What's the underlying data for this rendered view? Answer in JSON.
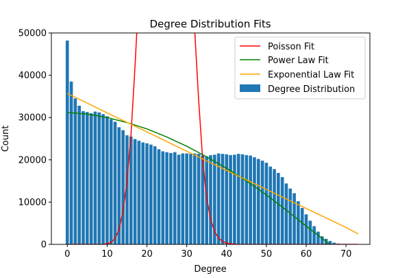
{
  "chart_data": {
    "type": "bar",
    "title": "Degree Distribution Fits",
    "xlabel": "Degree",
    "ylabel": "Count",
    "xlim": [
      -4,
      76
    ],
    "ylim": [
      0,
      50000
    ],
    "xticks": [
      0,
      10,
      20,
      30,
      40,
      50,
      60,
      70
    ],
    "yticks": [
      0,
      10000,
      20000,
      30000,
      40000,
      50000
    ],
    "grid": false,
    "legend_position": "top-right",
    "bar_series": {
      "name": "Degree Distribution",
      "color": "#1f77b4",
      "x": [
        0,
        1,
        2,
        3,
        4,
        5,
        6,
        7,
        8,
        9,
        10,
        11,
        12,
        13,
        14,
        15,
        16,
        17,
        18,
        19,
        20,
        21,
        22,
        23,
        24,
        25,
        26,
        27,
        28,
        29,
        30,
        31,
        32,
        33,
        34,
        35,
        36,
        37,
        38,
        39,
        40,
        41,
        42,
        43,
        44,
        45,
        46,
        47,
        48,
        49,
        50,
        51,
        52,
        53,
        54,
        55,
        56,
        57,
        58,
        59,
        60,
        61,
        62,
        63,
        64,
        65,
        66,
        67,
        68,
        69,
        70,
        71,
        72,
        73
      ],
      "values": [
        48200,
        38500,
        34500,
        32800,
        31500,
        31300,
        31000,
        31400,
        31200,
        30800,
        30300,
        29600,
        29000,
        27700,
        27000,
        25800,
        25500,
        24900,
        24500,
        24100,
        23900,
        23600,
        23200,
        22500,
        22000,
        21800,
        21600,
        21800,
        21200,
        21500,
        21500,
        21400,
        21500,
        21400,
        21000,
        20800,
        21100,
        21200,
        21500,
        21400,
        21300,
        21100,
        21200,
        21400,
        21300,
        21100,
        21000,
        20600,
        20200,
        19800,
        19300,
        18400,
        17800,
        16900,
        15900,
        14400,
        13200,
        12100,
        10200,
        8600,
        7100,
        5600,
        4300,
        3000,
        1900,
        1300,
        800,
        400,
        200,
        100,
        50,
        20,
        10,
        0
      ]
    },
    "line_series": [
      {
        "name": "Poisson Fit",
        "color": "#ff0000",
        "x": [
          0,
          1,
          2,
          3,
          4,
          5,
          6,
          7,
          8,
          9,
          10,
          11,
          12,
          13,
          14,
          15,
          16,
          17,
          18,
          19,
          20,
          21,
          22,
          23,
          24,
          25,
          26,
          27,
          28,
          29,
          30,
          31,
          32,
          33,
          34,
          35,
          36,
          37,
          38,
          39,
          40,
          41,
          42,
          43,
          44,
          45,
          46,
          47,
          48,
          49,
          50,
          51,
          52,
          53,
          54,
          55,
          56,
          57,
          58,
          59,
          60,
          61,
          62,
          63,
          64,
          65,
          66,
          67,
          68,
          69,
          70,
          71,
          72,
          73
        ],
        "values": [
          0,
          0,
          0,
          0,
          0,
          0,
          0,
          0,
          5,
          30,
          150,
          500,
          1400,
          3500,
          8000,
          15000,
          26000,
          42000,
          60000,
          80000,
          100000,
          115000,
          125000,
          130000,
          128000,
          120000,
          110000,
          98000,
          86000,
          72000,
          64000,
          55000,
          50500,
          34000,
          20000,
          11000,
          6000,
          3000,
          1500,
          700,
          300,
          150,
          60,
          25,
          10,
          5,
          0,
          0,
          0,
          0,
          0,
          0,
          0,
          0,
          0,
          0,
          0,
          0,
          0,
          0,
          0,
          0,
          0,
          0,
          0,
          0,
          0,
          0,
          0,
          0,
          0,
          0,
          0,
          0
        ]
      },
      {
        "name": "Power Law Fit",
        "color": "#008000",
        "x": [
          0,
          5,
          10,
          15,
          20,
          25,
          30,
          35,
          40,
          45,
          50,
          55,
          60,
          65,
          70,
          72
        ],
        "values": [
          31200,
          30800,
          30000,
          28800,
          27300,
          25400,
          23200,
          20700,
          18000,
          15000,
          11700,
          8100,
          4300,
          700,
          -3500,
          -5300
        ]
      },
      {
        "name": "Exponential Law Fit",
        "color": "#ffa500",
        "x": [
          0,
          10,
          20,
          30,
          40,
          50,
          60,
          70,
          73
        ],
        "values": [
          35700,
          31100,
          26600,
          22000,
          17500,
          13000,
          8500,
          4000,
          2500
        ]
      }
    ],
    "legend": [
      "Poisson Fit",
      "Power Law Fit",
      "Exponential Law Fit",
      "Degree Distribution"
    ]
  }
}
